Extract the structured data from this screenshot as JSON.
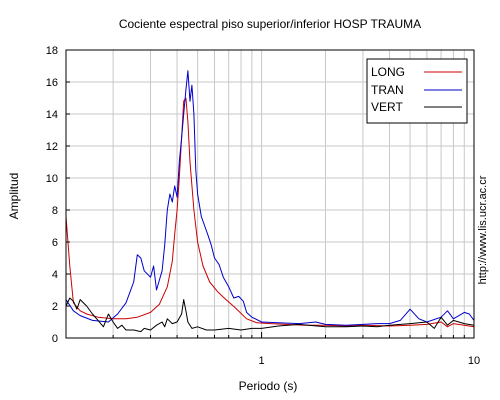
{
  "chart_data": {
    "type": "line",
    "title": "Cociente espectral piso superior/inferior  HOSP TRAUMA",
    "xlabel": "Periodo (s)",
    "ylabel": "Amplitud",
    "x_scale": "log",
    "xlim": [
      0.12,
      10
    ],
    "ylim": [
      0,
      18
    ],
    "x_tick_labels": [
      {
        "value": 1,
        "label": "1"
      },
      {
        "value": 10,
        "label": "10"
      }
    ],
    "y_ticks": [
      0,
      2,
      4,
      6,
      8,
      10,
      12,
      14,
      16,
      18
    ],
    "grid": true,
    "legend_position": "top-right",
    "side_annotation": "http://www.lis.ucr.ac.cr",
    "series": [
      {
        "name": "LONG",
        "color": "#cc0000",
        "points": [
          [
            0.12,
            7.6
          ],
          [
            0.125,
            4.5
          ],
          [
            0.13,
            2.2
          ],
          [
            0.14,
            1.7
          ],
          [
            0.15,
            1.5
          ],
          [
            0.17,
            1.3
          ],
          [
            0.2,
            1.2
          ],
          [
            0.23,
            1.2
          ],
          [
            0.26,
            1.3
          ],
          [
            0.3,
            1.6
          ],
          [
            0.33,
            2.1
          ],
          [
            0.36,
            3.2
          ],
          [
            0.38,
            4.8
          ],
          [
            0.39,
            6.5
          ],
          [
            0.4,
            8.0
          ],
          [
            0.41,
            10.0
          ],
          [
            0.42,
            12.5
          ],
          [
            0.43,
            14.8
          ],
          [
            0.44,
            15.0
          ],
          [
            0.45,
            13.5
          ],
          [
            0.46,
            11.0
          ],
          [
            0.48,
            8.0
          ],
          [
            0.5,
            6.0
          ],
          [
            0.53,
            4.5
          ],
          [
            0.57,
            3.5
          ],
          [
            0.62,
            2.9
          ],
          [
            0.68,
            2.4
          ],
          [
            0.75,
            1.9
          ],
          [
            0.85,
            1.2
          ],
          [
            0.95,
            0.95
          ],
          [
            1.1,
            0.9
          ],
          [
            1.3,
            0.85
          ],
          [
            1.6,
            0.8
          ],
          [
            2.0,
            0.8
          ],
          [
            2.5,
            0.75
          ],
          [
            3.0,
            0.8
          ],
          [
            4.0,
            0.75
          ],
          [
            5.0,
            0.8
          ],
          [
            6.0,
            0.85
          ],
          [
            7.0,
            1.0
          ],
          [
            7.5,
            0.7
          ],
          [
            8.0,
            0.9
          ],
          [
            9.0,
            0.8
          ],
          [
            10.0,
            0.7
          ]
        ]
      },
      {
        "name": "TRAN",
        "color": "#0000cc",
        "points": [
          [
            0.12,
            2.4
          ],
          [
            0.13,
            1.7
          ],
          [
            0.14,
            1.4
          ],
          [
            0.16,
            1.1
          ],
          [
            0.19,
            1.0
          ],
          [
            0.21,
            1.5
          ],
          [
            0.23,
            2.2
          ],
          [
            0.25,
            3.5
          ],
          [
            0.26,
            5.2
          ],
          [
            0.27,
            5.0
          ],
          [
            0.28,
            4.2
          ],
          [
            0.3,
            3.8
          ],
          [
            0.31,
            4.5
          ],
          [
            0.32,
            3.0
          ],
          [
            0.33,
            3.6
          ],
          [
            0.34,
            4.2
          ],
          [
            0.35,
            5.8
          ],
          [
            0.36,
            8.0
          ],
          [
            0.37,
            9.0
          ],
          [
            0.38,
            8.5
          ],
          [
            0.39,
            9.5
          ],
          [
            0.4,
            8.8
          ],
          [
            0.41,
            11.0
          ],
          [
            0.42,
            12.5
          ],
          [
            0.43,
            14.0
          ],
          [
            0.44,
            15.5
          ],
          [
            0.45,
            16.7
          ],
          [
            0.46,
            14.8
          ],
          [
            0.47,
            15.8
          ],
          [
            0.48,
            14.0
          ],
          [
            0.49,
            10.5
          ],
          [
            0.5,
            9.0
          ],
          [
            0.52,
            7.6
          ],
          [
            0.54,
            7.0
          ],
          [
            0.56,
            6.4
          ],
          [
            0.58,
            5.8
          ],
          [
            0.6,
            5.0
          ],
          [
            0.63,
            4.6
          ],
          [
            0.66,
            3.8
          ],
          [
            0.7,
            3.2
          ],
          [
            0.74,
            2.5
          ],
          [
            0.78,
            2.6
          ],
          [
            0.82,
            2.3
          ],
          [
            0.85,
            1.6
          ],
          [
            0.9,
            1.3
          ],
          [
            1.0,
            1.0
          ],
          [
            1.2,
            0.95
          ],
          [
            1.5,
            0.9
          ],
          [
            1.8,
            1.0
          ],
          [
            2.0,
            0.85
          ],
          [
            2.5,
            0.8
          ],
          [
            3.0,
            0.85
          ],
          [
            3.5,
            0.9
          ],
          [
            4.0,
            0.9
          ],
          [
            4.5,
            1.1
          ],
          [
            5.0,
            1.8
          ],
          [
            5.5,
            1.2
          ],
          [
            6.0,
            1.0
          ],
          [
            7.0,
            1.3
          ],
          [
            7.5,
            1.7
          ],
          [
            8.0,
            1.2
          ],
          [
            8.5,
            1.4
          ],
          [
            9.0,
            1.6
          ],
          [
            9.5,
            1.5
          ],
          [
            10.0,
            1.1
          ]
        ]
      },
      {
        "name": "VERT",
        "color": "#000000",
        "points": [
          [
            0.12,
            2.0
          ],
          [
            0.125,
            2.5
          ],
          [
            0.13,
            2.3
          ],
          [
            0.135,
            1.8
          ],
          [
            0.14,
            2.4
          ],
          [
            0.15,
            2.0
          ],
          [
            0.16,
            1.5
          ],
          [
            0.17,
            1.1
          ],
          [
            0.18,
            0.7
          ],
          [
            0.19,
            1.5
          ],
          [
            0.2,
            1.0
          ],
          [
            0.21,
            0.6
          ],
          [
            0.22,
            0.8
          ],
          [
            0.23,
            0.5
          ],
          [
            0.25,
            0.5
          ],
          [
            0.27,
            0.4
          ],
          [
            0.28,
            0.6
          ],
          [
            0.3,
            0.5
          ],
          [
            0.32,
            0.8
          ],
          [
            0.34,
            1.0
          ],
          [
            0.35,
            0.7
          ],
          [
            0.36,
            1.2
          ],
          [
            0.38,
            0.9
          ],
          [
            0.4,
            1.0
          ],
          [
            0.42,
            1.5
          ],
          [
            0.43,
            2.4
          ],
          [
            0.44,
            1.7
          ],
          [
            0.45,
            1.0
          ],
          [
            0.47,
            0.6
          ],
          [
            0.5,
            0.7
          ],
          [
            0.55,
            0.5
          ],
          [
            0.6,
            0.5
          ],
          [
            0.7,
            0.6
          ],
          [
            0.8,
            0.5
          ],
          [
            0.9,
            0.6
          ],
          [
            1.0,
            0.6
          ],
          [
            1.2,
            0.75
          ],
          [
            1.5,
            0.85
          ],
          [
            2.0,
            0.7
          ],
          [
            2.5,
            0.7
          ],
          [
            3.0,
            0.75
          ],
          [
            3.5,
            0.7
          ],
          [
            4.0,
            0.8
          ],
          [
            5.0,
            0.9
          ],
          [
            6.0,
            1.0
          ],
          [
            6.5,
            0.6
          ],
          [
            7.0,
            1.3
          ],
          [
            7.5,
            0.8
          ],
          [
            8.0,
            1.1
          ],
          [
            9.0,
            0.9
          ],
          [
            10.0,
            0.8
          ]
        ]
      }
    ]
  }
}
